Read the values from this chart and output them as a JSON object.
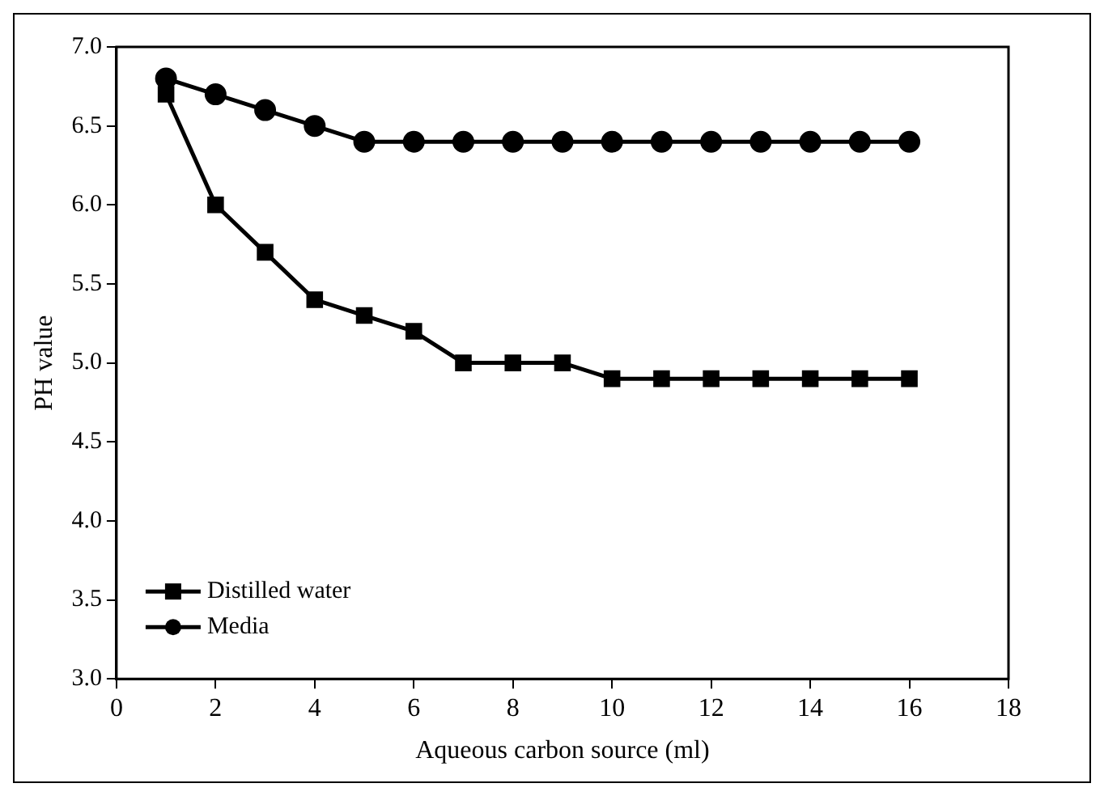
{
  "chart_data": {
    "type": "line",
    "xlabel": "Aqueous carbon source (ml)",
    "ylabel": "PH value",
    "x": [
      1,
      2,
      3,
      4,
      5,
      6,
      7,
      8,
      9,
      10,
      11,
      12,
      13,
      14,
      15,
      16
    ],
    "series": [
      {
        "name": "Distilled water",
        "color": "#000000",
        "marker": "square",
        "values": [
          6.7,
          6.0,
          5.7,
          5.4,
          5.3,
          5.2,
          5.0,
          5.0,
          5.0,
          4.9,
          4.9,
          4.9,
          4.9,
          4.9,
          4.9,
          4.9
        ]
      },
      {
        "name": "Media",
        "color": "#000000",
        "marker": "circle",
        "values": [
          6.8,
          6.7,
          6.6,
          6.5,
          6.4,
          6.4,
          6.4,
          6.4,
          6.4,
          6.4,
          6.4,
          6.4,
          6.4,
          6.4,
          6.4,
          6.4
        ]
      }
    ],
    "xlim": [
      0,
      18
    ],
    "xticks": [
      0,
      2,
      4,
      6,
      8,
      10,
      12,
      14,
      16,
      18
    ],
    "ylim": [
      3,
      7
    ],
    "yticks": [
      {
        "value": 3,
        "label": "3.0"
      },
      {
        "value": 3.5,
        "label": "3.5"
      },
      {
        "value": 4,
        "label": "4.0"
      },
      {
        "value": 4.5,
        "label": "4.5"
      },
      {
        "value": 5,
        "label": "5.0"
      },
      {
        "value": 5.5,
        "label": "5.5"
      },
      {
        "value": 6,
        "label": "6.0"
      },
      {
        "value": 6.5,
        "label": "6.5"
      },
      {
        "value": 7,
        "label": "7.0"
      }
    ],
    "grid": false,
    "legend": "bottom left",
    "line_style": "solid"
  }
}
